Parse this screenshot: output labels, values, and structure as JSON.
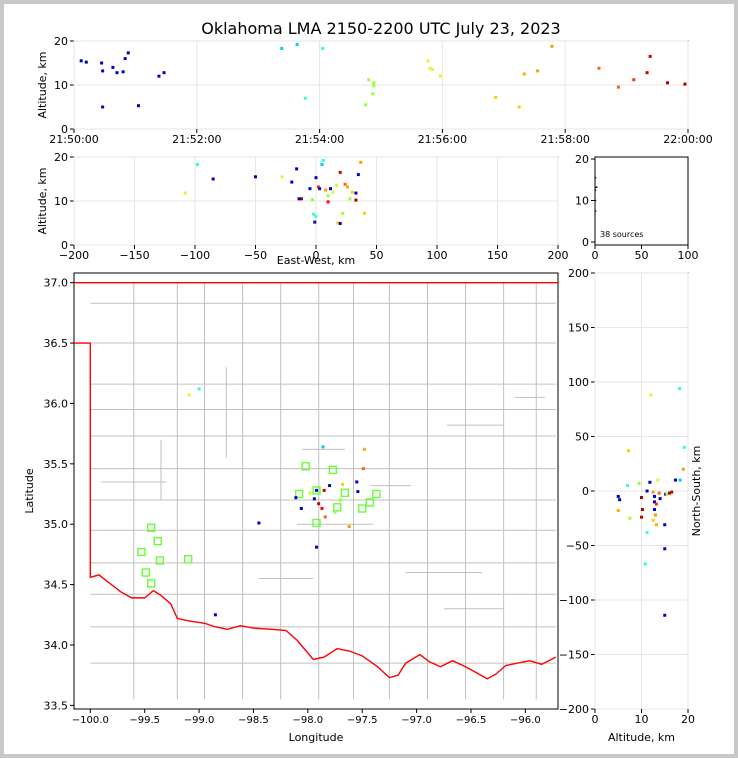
{
  "title": "Oklahoma LMA 2150-2200 UTC July 23, 2023",
  "colors": {
    "frame_bg": "#c8c8c8",
    "plot_bg": "#ffffff",
    "state_border": "#ff0000",
    "county_lines": "#c0c0c0",
    "grid": "#e6e6e6",
    "stations": "#66ff33"
  },
  "chart_data": [
    {
      "id": "time_height",
      "type": "scatter",
      "xlabel": "",
      "ylabel": "Altitude, km",
      "xlim": [
        "21:50:00",
        "22:00:00"
      ],
      "ylim": [
        0,
        20
      ],
      "xticks": [
        "21:50:00",
        "21:52:00",
        "21:54:00",
        "21:56:00",
        "21:58:00",
        "22:00:00"
      ],
      "yticks": [
        0,
        10,
        20
      ],
      "grid": true,
      "points": [
        {
          "t": "21:50:07",
          "alt": 15.5,
          "color": "#0000cc"
        },
        {
          "t": "21:50:12",
          "alt": 15.2,
          "color": "#0000cc"
        },
        {
          "t": "21:50:27",
          "alt": 15.0,
          "color": "#0000cc"
        },
        {
          "t": "21:50:28",
          "alt": 13.2,
          "color": "#0000cc"
        },
        {
          "t": "21:50:28",
          "alt": 5.0,
          "color": "#0000cc"
        },
        {
          "t": "21:50:38",
          "alt": 14.0,
          "color": "#0000cc"
        },
        {
          "t": "21:50:42",
          "alt": 12.8,
          "color": "#0000cc"
        },
        {
          "t": "21:50:48",
          "alt": 13.0,
          "color": "#0000cc"
        },
        {
          "t": "21:50:50",
          "alt": 16.0,
          "color": "#0000cc"
        },
        {
          "t": "21:50:53",
          "alt": 17.3,
          "color": "#0000cc"
        },
        {
          "t": "21:51:03",
          "alt": 5.3,
          "color": "#0000cc"
        },
        {
          "t": "21:51:23",
          "alt": 12.0,
          "color": "#0000cc"
        },
        {
          "t": "21:51:28",
          "alt": 12.8,
          "color": "#0000cc"
        },
        {
          "t": "21:53:23",
          "alt": 18.3,
          "color": "#00ccff"
        },
        {
          "t": "21:53:38",
          "alt": 19.2,
          "color": "#00ccff"
        },
        {
          "t": "21:53:46",
          "alt": 7.0,
          "color": "#33ffcc"
        },
        {
          "t": "21:54:03",
          "alt": 18.3,
          "color": "#33ffcc"
        },
        {
          "t": "21:54:45",
          "alt": 5.5,
          "color": "#99ff33"
        },
        {
          "t": "21:54:48",
          "alt": 11.2,
          "color": "#99ff33"
        },
        {
          "t": "21:54:52",
          "alt": 8.0,
          "color": "#99ff33"
        },
        {
          "t": "21:54:53",
          "alt": 10.5,
          "color": "#99ff33"
        },
        {
          "t": "21:54:53",
          "alt": 9.8,
          "color": "#99ff33"
        },
        {
          "t": "21:55:46",
          "alt": 15.5,
          "color": "#ccff33"
        },
        {
          "t": "21:55:48",
          "alt": 13.8,
          "color": "#ccff33"
        },
        {
          "t": "21:55:50",
          "alt": 13.5,
          "color": "#ccff33"
        },
        {
          "t": "21:55:58",
          "alt": 12.0,
          "color": "#ccff33"
        },
        {
          "t": "21:56:52",
          "alt": 7.2,
          "color": "#ffcc00"
        },
        {
          "t": "21:57:15",
          "alt": 5.0,
          "color": "#ffcc00"
        },
        {
          "t": "21:57:20",
          "alt": 12.5,
          "color": "#ffaa00"
        },
        {
          "t": "21:57:33",
          "alt": 13.2,
          "color": "#ff9900"
        },
        {
          "t": "21:57:47",
          "alt": 18.8,
          "color": "#ff9900"
        },
        {
          "t": "21:58:33",
          "alt": 13.8,
          "color": "#ff6600"
        },
        {
          "t": "21:58:52",
          "alt": 9.5,
          "color": "#ff6600"
        },
        {
          "t": "21:59:07",
          "alt": 11.2,
          "color": "#ff3300"
        },
        {
          "t": "21:59:20",
          "alt": 12.8,
          "color": "#cc0000"
        },
        {
          "t": "21:59:23",
          "alt": 16.5,
          "color": "#cc0000"
        },
        {
          "t": "21:59:40",
          "alt": 10.5,
          "color": "#aa0000"
        },
        {
          "t": "21:59:57",
          "alt": 10.2,
          "color": "#aa0000"
        }
      ]
    },
    {
      "id": "ew_alt",
      "type": "scatter",
      "xlabel": "East-West, km",
      "ylabel": "Altitude, km",
      "xlim": [
        -200,
        200
      ],
      "ylim": [
        0,
        20
      ],
      "xticks": [
        -200,
        -150,
        -100,
        -50,
        0,
        50,
        100,
        150,
        200
      ],
      "yticks": [
        0,
        10,
        20
      ],
      "grid": true
    },
    {
      "id": "histogram",
      "type": "bar",
      "xlabel": "",
      "ylabel": "",
      "xlim": [
        0,
        100
      ],
      "ylim": [
        0,
        20
      ],
      "xticks": [
        0,
        50,
        100
      ],
      "yticks": [
        0,
        10,
        20
      ],
      "annotation": "38 sources",
      "note_values": [
        {
          "count": 1,
          "alt": 13.2
        },
        {
          "count": 1,
          "alt": 12.5
        },
        {
          "count": 1,
          "alt": 7.5
        },
        {
          "count": 1,
          "alt": 15.5
        }
      ]
    },
    {
      "id": "plan_view",
      "type": "scatter",
      "xlabel": "Longitude",
      "ylabel": "Latitude",
      "xlim": [
        -100.15,
        -95.7
      ],
      "ylim": [
        33.47,
        37.08
      ],
      "xticks": [
        -100.0,
        -99.5,
        -99.0,
        -98.5,
        -98.0,
        -97.5,
        -97.0,
        -96.5,
        -96.0
      ],
      "xtick_labels": [
        "−100.0",
        "−99.5",
        "−99.0",
        "−98.5",
        "−98.0",
        "−97.5",
        "−97.0",
        "−96.5",
        "−96.0"
      ],
      "yticks": [
        33.5,
        34.0,
        34.5,
        35.0,
        35.5,
        36.0,
        36.5,
        37.0
      ],
      "ytick_labels": [
        "33.5",
        "34.0",
        "34.5",
        "35.0",
        "35.5",
        "36.0",
        "36.5",
        "37.0"
      ],
      "stations": [
        {
          "lon": -99.44,
          "lat": 34.97
        },
        {
          "lon": -99.38,
          "lat": 34.86
        },
        {
          "lon": -99.53,
          "lat": 34.77
        },
        {
          "lon": -99.36,
          "lat": 34.7
        },
        {
          "lon": -99.1,
          "lat": 34.71
        },
        {
          "lon": -99.49,
          "lat": 34.6
        },
        {
          "lon": -99.44,
          "lat": 34.51
        },
        {
          "lon": -98.02,
          "lat": 35.48
        },
        {
          "lon": -97.77,
          "lat": 35.45
        },
        {
          "lon": -98.08,
          "lat": 35.25
        },
        {
          "lon": -97.92,
          "lat": 35.28
        },
        {
          "lon": -97.66,
          "lat": 35.26
        },
        {
          "lon": -97.37,
          "lat": 35.25
        },
        {
          "lon": -97.43,
          "lat": 35.18
        },
        {
          "lon": -97.73,
          "lat": 35.14
        },
        {
          "lon": -97.5,
          "lat": 35.13
        },
        {
          "lon": -97.92,
          "lat": 35.01
        }
      ],
      "points": [
        {
          "lon": -98.45,
          "lat": 35.01,
          "color": "#0000cc"
        },
        {
          "lon": -98.11,
          "lat": 35.22,
          "color": "#0000cc"
        },
        {
          "lon": -98.06,
          "lat": 35.13,
          "color": "#0000cc"
        },
        {
          "lon": -97.94,
          "lat": 35.21,
          "color": "#0000cc"
        },
        {
          "lon": -97.92,
          "lat": 35.28,
          "color": "#0000cc"
        },
        {
          "lon": -97.9,
          "lat": 35.17,
          "color": "#cc0000"
        },
        {
          "lon": -97.87,
          "lat": 35.13,
          "color": "#ff0000"
        },
        {
          "lon": -97.85,
          "lat": 35.28,
          "color": "#cc0000"
        },
        {
          "lon": -97.84,
          "lat": 35.06,
          "color": "#ff6600"
        },
        {
          "lon": -97.86,
          "lat": 35.64,
          "color": "#00ccff"
        },
        {
          "lon": -97.92,
          "lat": 34.81,
          "color": "#0000cc"
        },
        {
          "lon": -98.85,
          "lat": 34.25,
          "color": "#0000cc"
        },
        {
          "lon": -97.68,
          "lat": 35.33,
          "color": "#ffcc00"
        },
        {
          "lon": -97.62,
          "lat": 34.98,
          "color": "#ff9900"
        },
        {
          "lon": -97.55,
          "lat": 35.35,
          "color": "#0000cc"
        },
        {
          "lon": -97.54,
          "lat": 35.27,
          "color": "#0000cc"
        },
        {
          "lon": -97.49,
          "lat": 35.46,
          "color": "#ff6600"
        },
        {
          "lon": -97.48,
          "lat": 35.62,
          "color": "#ffaa00"
        },
        {
          "lon": -97.7,
          "lat": 35.2,
          "color": "#99ff33"
        },
        {
          "lon": -99.09,
          "lat": 36.07,
          "color": "#ccff33"
        },
        {
          "lon": -99.0,
          "lat": 36.12,
          "color": "#33ffcc"
        },
        {
          "lon": -97.98,
          "lat": 35.26,
          "color": "#ccff33"
        },
        {
          "lon": -97.75,
          "lat": 35.1,
          "color": "#99ff33"
        },
        {
          "lon": -97.8,
          "lat": 35.32,
          "color": "#0000cc"
        }
      ]
    },
    {
      "id": "alt_ns",
      "type": "scatter",
      "xlabel": "Altitude, km",
      "ylabel": "North-South, km",
      "xlim": [
        0,
        20
      ],
      "ylim": [
        -200,
        200
      ],
      "xticks": [
        0,
        10,
        20
      ],
      "yticks": [
        -200,
        -150,
        -100,
        -50,
        0,
        50,
        100,
        150,
        200
      ],
      "yticks_labels": [
        "−200",
        "−150",
        "−100",
        "−50",
        "0",
        "50",
        "100",
        "150",
        "200"
      ],
      "grid": true,
      "points": [
        {
          "alt": 12.0,
          "ns": 88,
          "color": "#ccff33"
        },
        {
          "alt": 18.2,
          "ns": 94,
          "color": "#33ffcc"
        },
        {
          "alt": 19.2,
          "ns": 40,
          "color": "#33ffcc"
        },
        {
          "alt": 7.2,
          "ns": 37,
          "color": "#ffcc00"
        },
        {
          "alt": 19.0,
          "ns": 20,
          "color": "#ff9900"
        },
        {
          "alt": 5.0,
          "ns": -5,
          "color": "#0000cc"
        },
        {
          "alt": 5.3,
          "ns": -8,
          "color": "#0000cc"
        },
        {
          "alt": 5.0,
          "ns": -18,
          "color": "#ffaa00"
        },
        {
          "alt": 7.0,
          "ns": 5,
          "color": "#33ffcc"
        },
        {
          "alt": 7.5,
          "ns": -25,
          "color": "#99ff33"
        },
        {
          "alt": 9.5,
          "ns": 7,
          "color": "#99ff33"
        },
        {
          "alt": 10.0,
          "ns": -6,
          "color": "#aa0000"
        },
        {
          "alt": 10.2,
          "ns": -17,
          "color": "#aa0000"
        },
        {
          "alt": 10.0,
          "ns": -24,
          "color": "#cc0000"
        },
        {
          "alt": 11.2,
          "ns": -38,
          "color": "#33ffcc"
        },
        {
          "alt": 10.8,
          "ns": -67,
          "color": "#33ffcc"
        },
        {
          "alt": 11.8,
          "ns": 8,
          "color": "#0000cc"
        },
        {
          "alt": 11.2,
          "ns": 0,
          "color": "#0000cc"
        },
        {
          "alt": 12.5,
          "ns": -1,
          "color": "#ff9900"
        },
        {
          "alt": 12.8,
          "ns": -5,
          "color": "#0000cc"
        },
        {
          "alt": 12.8,
          "ns": -10,
          "color": "#0000cc"
        },
        {
          "alt": 13.2,
          "ns": -12,
          "color": "#ff3300"
        },
        {
          "alt": 12.8,
          "ns": -17,
          "color": "#0000cc"
        },
        {
          "alt": 12.5,
          "ns": -27,
          "color": "#ffcc00"
        },
        {
          "alt": 13.0,
          "ns": -22,
          "color": "#ff9900"
        },
        {
          "alt": 13.2,
          "ns": -31,
          "color": "#ffaa00"
        },
        {
          "alt": 13.5,
          "ns": 10,
          "color": "#ccff33"
        },
        {
          "alt": 13.8,
          "ns": -2,
          "color": "#ff6600"
        },
        {
          "alt": 14.0,
          "ns": -7,
          "color": "#0000cc"
        },
        {
          "alt": 15.2,
          "ns": -3,
          "color": "#0000cc"
        },
        {
          "alt": 15.5,
          "ns": -3,
          "color": "#ccff33"
        },
        {
          "alt": 16.0,
          "ns": -2,
          "color": "#aa0000"
        },
        {
          "alt": 15.0,
          "ns": -31,
          "color": "#0000cc"
        },
        {
          "alt": 15.0,
          "ns": -53,
          "color": "#0000cc"
        },
        {
          "alt": 15.0,
          "ns": -114,
          "color": "#0000cc"
        },
        {
          "alt": 17.3,
          "ns": 10,
          "color": "#0000cc"
        },
        {
          "alt": 18.3,
          "ns": 10,
          "color": "#00ccff"
        },
        {
          "alt": 16.5,
          "ns": -1,
          "color": "#cc0000"
        }
      ]
    }
  ]
}
